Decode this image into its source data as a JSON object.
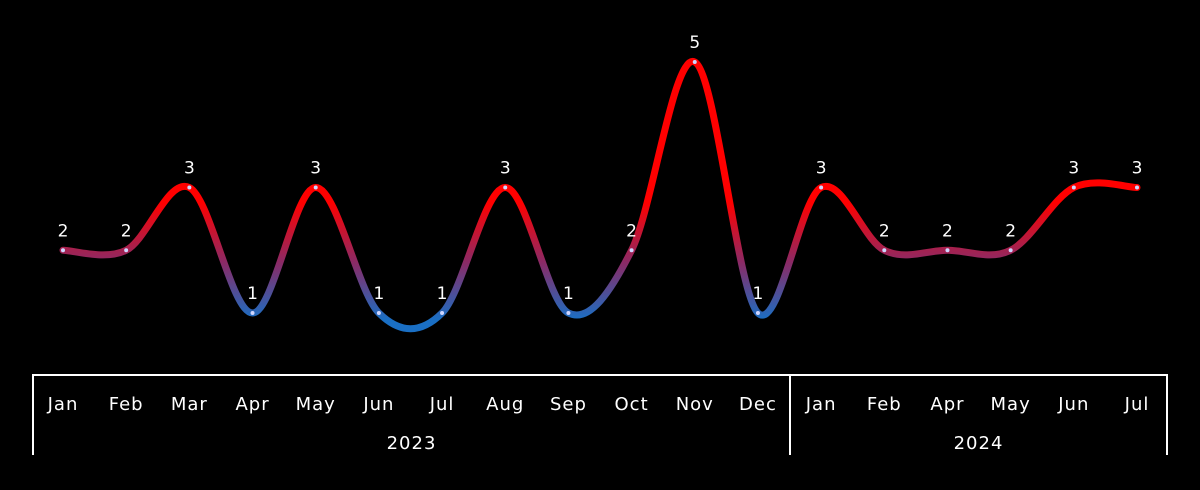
{
  "chart_data": {
    "type": "line",
    "x": [
      "Jan",
      "Feb",
      "Mar",
      "Apr",
      "May",
      "Jun",
      "Jul",
      "Aug",
      "Sep",
      "Oct",
      "Nov",
      "Dec",
      "Jan",
      "Feb",
      "Apr",
      "May",
      "Jun",
      "Jul"
    ],
    "values": [
      2,
      2,
      3,
      1,
      3,
      1,
      1,
      3,
      1,
      2,
      5,
      1,
      3,
      2,
      2,
      2,
      3,
      3
    ],
    "data_labels": [
      "2",
      "2",
      "3",
      "1",
      "3",
      "1",
      "1",
      "3",
      "1",
      "2",
      "5",
      "1",
      "3",
      "2",
      "2",
      "2",
      "3",
      "3"
    ],
    "groups": [
      {
        "label": "2023",
        "start": 0,
        "end": 11
      },
      {
        "label": "2024",
        "start": 12,
        "end": 17
      }
    ],
    "ylim": [
      0,
      5
    ],
    "grid": false,
    "colors": {
      "high": "#ff0000",
      "low": "#1a6fc4",
      "background": "#000000",
      "axis": "#ffffff"
    }
  }
}
